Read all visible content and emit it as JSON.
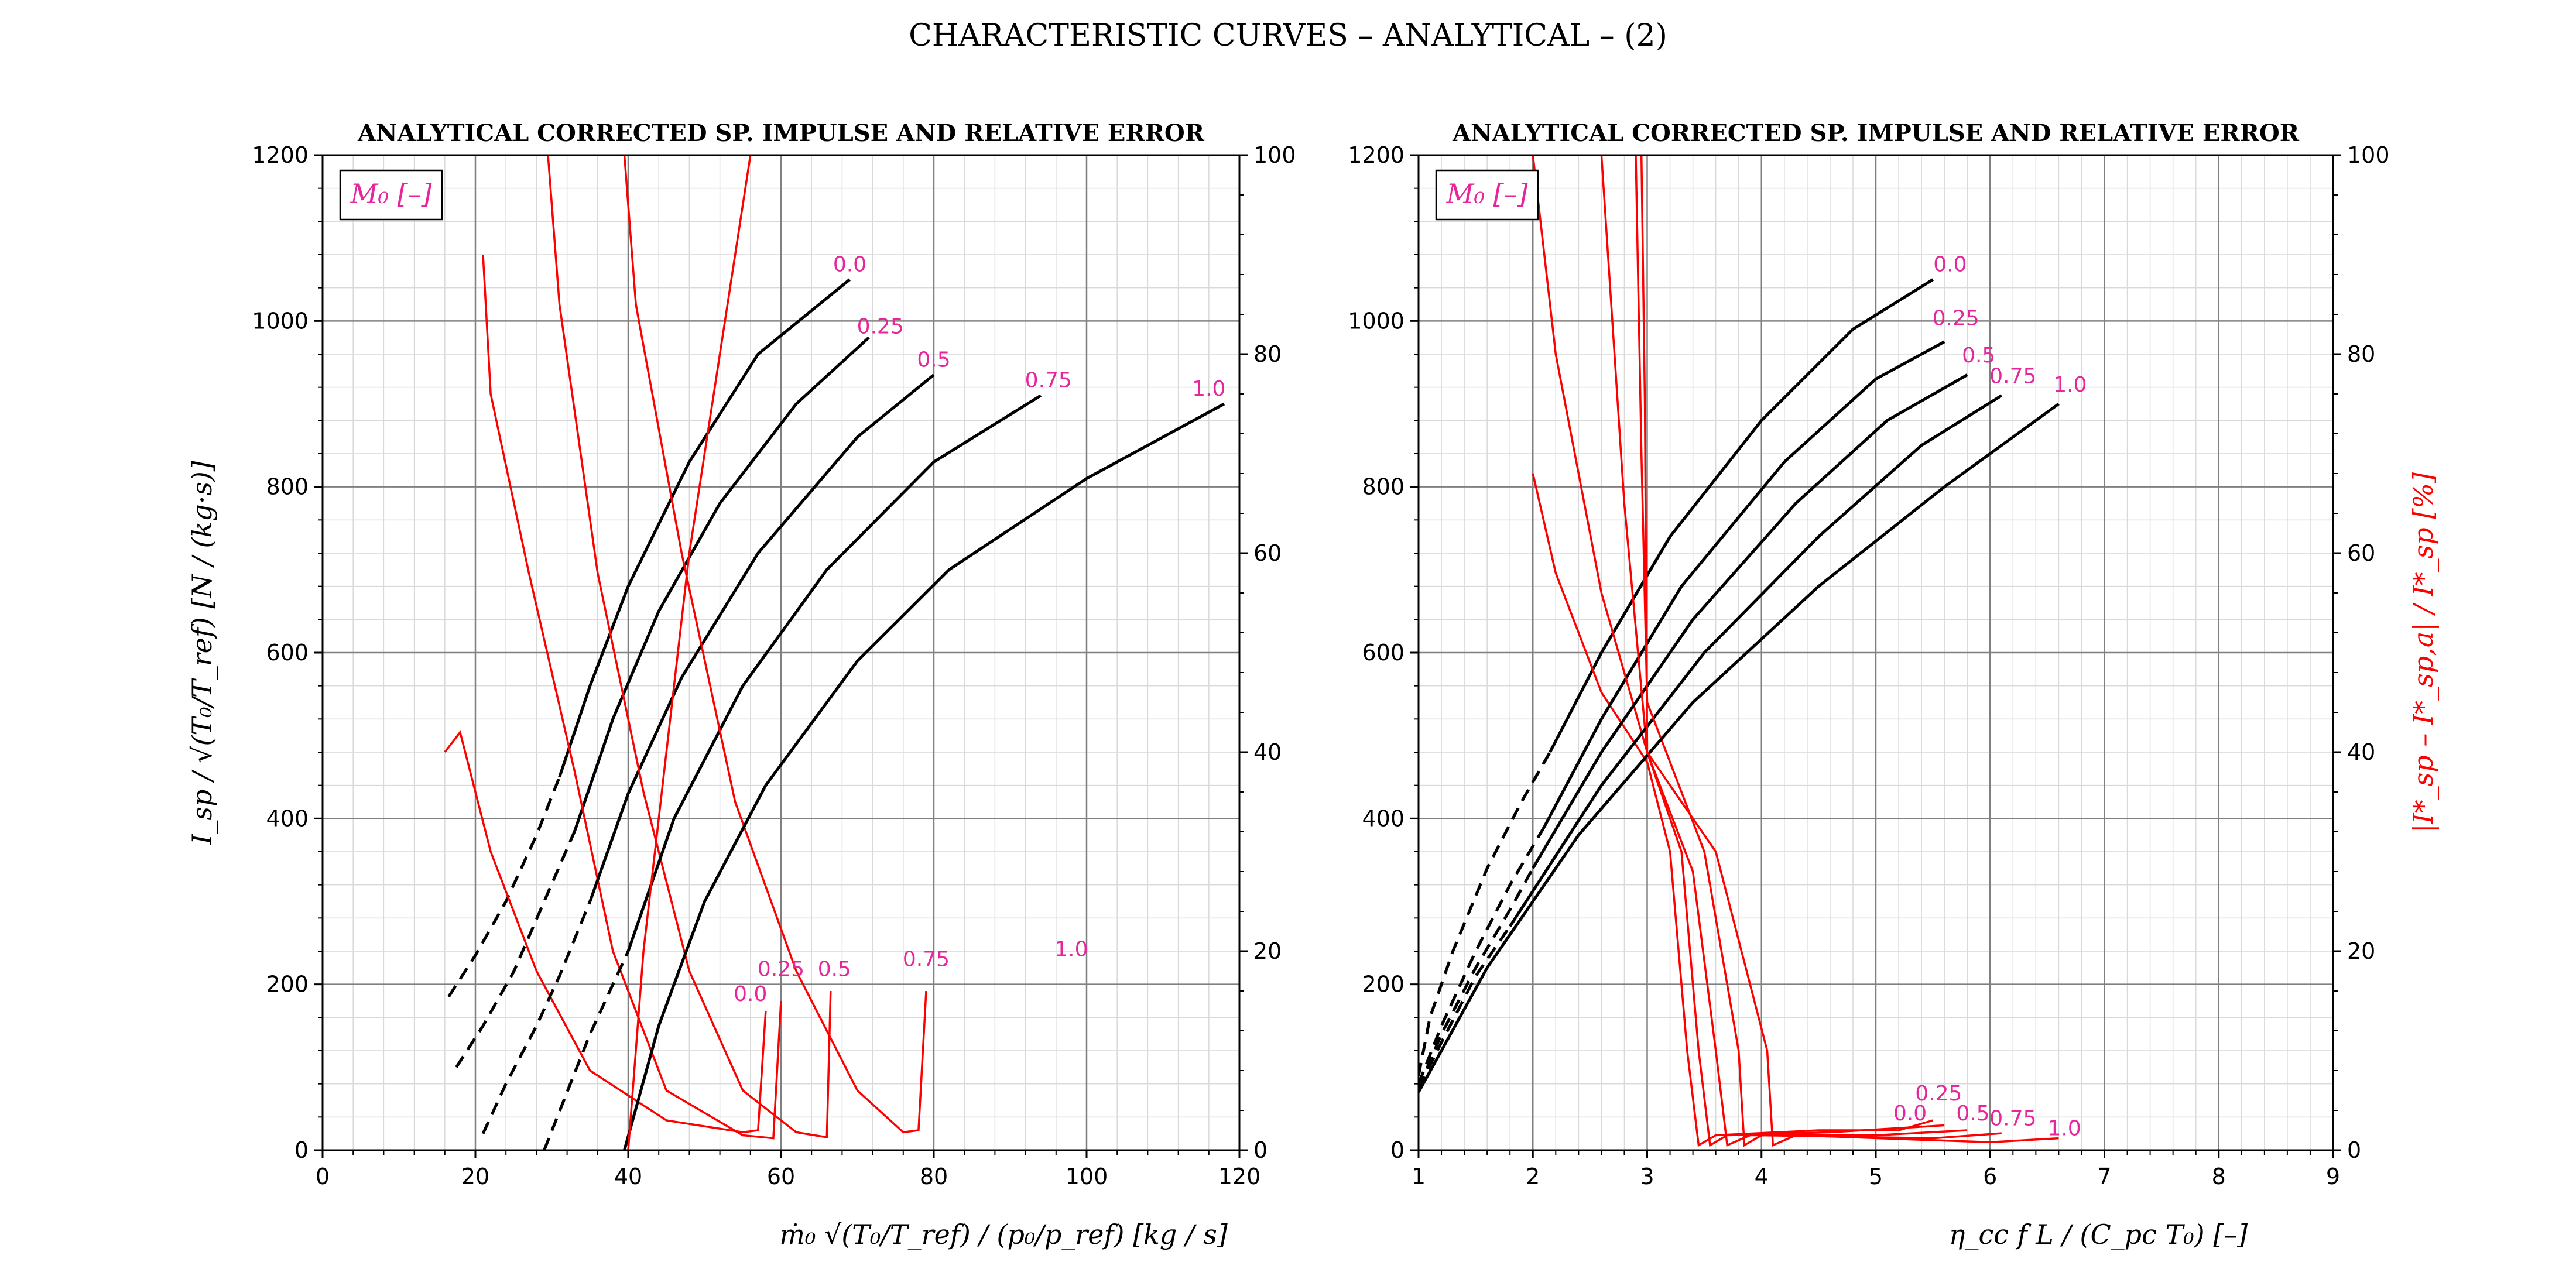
{
  "figure": {
    "title": "CHARACTERISTIC CURVES – ANALYTICAL – (2)"
  },
  "colors": {
    "main": "#000000",
    "error": "#ff0000",
    "label": "#e6269a",
    "grid_major": "#808080",
    "grid_minor": "#d9d9d9"
  },
  "legend_label": "M₀ [–]",
  "ylabel_left": "I_sp / √(T₀/T_ref)  [N / (kg·s)]",
  "ylabel_right": "|I*_sp – I*_sp,a| / I*_sp  [%]",
  "chart_data": [
    {
      "type": "line",
      "title": "ANALYTICAL CORRECTED SP. IMPULSE AND RELATIVE ERROR",
      "xlabel": "ṁ₀ √(T₀/T_ref) / (p₀/p_ref)  [kg / s]",
      "ylabel": "I_sp / √(T₀/T_ref)  [N / (kg·s)]",
      "ylabel_right": "",
      "xlim": [
        0,
        120
      ],
      "ylim": [
        0,
        1200
      ],
      "y2lim": [
        0,
        100
      ],
      "xticks": [
        "0",
        "20",
        "40",
        "60",
        "80",
        "100",
        "120"
      ],
      "yticks": [
        "0",
        "200",
        "400",
        "600",
        "800",
        "1000",
        "1200"
      ],
      "y2ticks": [
        "0",
        "20",
        "40",
        "60",
        "80",
        "100"
      ],
      "grid": true,
      "legend_position": "top-left",
      "series": [
        {
          "name": "0.0",
          "dashed": [
            [
              16.5,
              185
            ],
            [
              20,
              235
            ],
            [
              24,
              300
            ],
            [
              28,
              380
            ],
            [
              31,
              450
            ]
          ],
          "solid": [
            [
              31,
              450
            ],
            [
              35,
              560
            ],
            [
              40,
              680
            ],
            [
              48,
              830
            ],
            [
              57,
              960
            ],
            [
              69,
              1050
            ]
          ],
          "err": [
            [
              16,
              40
            ],
            [
              18,
              42
            ],
            [
              22,
              30
            ],
            [
              28,
              18
            ],
            [
              35,
              8
            ],
            [
              45,
              3
            ],
            [
              55,
              1.8
            ],
            [
              57,
              2
            ],
            [
              58,
              14
            ]
          ]
        },
        {
          "name": "0.25",
          "dashed": [
            [
              17.5,
              100
            ],
            [
              21,
              150
            ],
            [
              25,
              215
            ],
            [
              29,
              300
            ],
            [
              33,
              385
            ]
          ],
          "solid": [
            [
              33,
              385
            ],
            [
              38,
              520
            ],
            [
              44,
              650
            ],
            [
              52,
              780
            ],
            [
              62,
              900
            ],
            [
              71.5,
              980
            ]
          ],
          "err": [
            [
              21,
              90
            ],
            [
              22,
              76
            ],
            [
              27,
              58
            ],
            [
              33,
              38
            ],
            [
              38,
              20
            ],
            [
              45,
              6
            ],
            [
              55,
              1.5
            ],
            [
              59,
              1.2
            ],
            [
              60,
              15
            ]
          ]
        },
        {
          "name": "0.5",
          "dashed": [
            [
              21,
              20
            ],
            [
              24,
              80
            ],
            [
              28,
              150
            ],
            [
              31,
              210
            ],
            [
              35,
              300
            ]
          ],
          "solid": [
            [
              35,
              300
            ],
            [
              40,
              430
            ],
            [
              47,
              570
            ],
            [
              57,
              720
            ],
            [
              70,
              860
            ],
            [
              80,
              935
            ]
          ],
          "err": [
            [
              29.5,
              100
            ],
            [
              31,
              85
            ],
            [
              36,
              58
            ],
            [
              42,
              36
            ],
            [
              48,
              18
            ],
            [
              55,
              6
            ],
            [
              62,
              1.8
            ],
            [
              66,
              1.3
            ],
            [
              66.5,
              16
            ]
          ]
        },
        {
          "name": "0.75",
          "dashed": [
            [
              29,
              0
            ],
            [
              32,
              70
            ],
            [
              35,
              140
            ],
            [
              38,
              200
            ],
            [
              40,
              240
            ]
          ],
          "solid": [
            [
              40,
              240
            ],
            [
              46,
              400
            ],
            [
              55,
              560
            ],
            [
              66,
              700
            ],
            [
              80,
              830
            ],
            [
              94,
              910
            ]
          ],
          "err": [
            [
              39.5,
              100
            ],
            [
              41,
              85
            ],
            [
              47,
              60
            ],
            [
              54,
              35
            ],
            [
              62,
              18
            ],
            [
              70,
              6
            ],
            [
              76,
              1.8
            ],
            [
              78,
              2
            ],
            [
              79,
              16
            ]
          ]
        },
        {
          "name": "1.0",
          "dashed": [],
          "solid": [
            [
              39.5,
              0
            ],
            [
              44,
              150
            ],
            [
              50,
              300
            ],
            [
              58,
              440
            ],
            [
              70,
              590
            ],
            [
              82,
              700
            ],
            [
              100,
              810
            ],
            [
              118,
              900
            ]
          ],
          "err": [
            [
              40,
              0
            ],
            [
              42,
              20
            ],
            [
              48,
              60
            ],
            [
              56,
              100
            ],
            [
              66,
              140
            ],
            [
              80,
              200
            ],
            [
              98,
              400
            ]
          ]
        }
      ],
      "labels": [
        {
          "text": "0.0",
          "x": 69,
          "y": 1060,
          "axis": "main"
        },
        {
          "text": "0.25",
          "x": 73,
          "y": 985,
          "axis": "main"
        },
        {
          "text": "0.5",
          "x": 80,
          "y": 945,
          "axis": "main"
        },
        {
          "text": "0.75",
          "x": 95,
          "y": 920,
          "axis": "main"
        },
        {
          "text": "1.0",
          "x": 116,
          "y": 910,
          "axis": "main"
        },
        {
          "text": "0.0",
          "x": 56,
          "y": 15,
          "axis": "err"
        },
        {
          "text": "0.25",
          "x": 60,
          "y": 17.5,
          "axis": "err"
        },
        {
          "text": "0.5",
          "x": 67,
          "y": 17.5,
          "axis": "err"
        },
        {
          "text": "0.75",
          "x": 79,
          "y": 18.5,
          "axis": "err"
        },
        {
          "text": "1.0",
          "x": 98,
          "y": 19.5,
          "axis": "err"
        }
      ]
    },
    {
      "type": "line",
      "title": "ANALYTICAL CORRECTED SP. IMPULSE AND RELATIVE ERROR",
      "xlabel": "η_cc f L / (C_pc T₀)  [–]",
      "ylabel": "",
      "ylabel_right": "|I*_sp – I*_sp,a| / I*_sp  [%]",
      "xlim": [
        1,
        9
      ],
      "ylim": [
        0,
        1200
      ],
      "y2lim": [
        0,
        100
      ],
      "xticks": [
        "1",
        "2",
        "3",
        "4",
        "5",
        "6",
        "7",
        "8",
        "9"
      ],
      "yticks": [
        "0",
        "200",
        "400",
        "600",
        "800",
        "1000",
        "1200"
      ],
      "y2ticks": [
        "0",
        "20",
        "40",
        "60",
        "80",
        "100"
      ],
      "grid": true,
      "legend_position": "top-left",
      "series": [
        {
          "name": "0.0",
          "dashed": [
            [
              1.0,
              90
            ],
            [
              1.1,
              160
            ],
            [
              1.3,
              240
            ],
            [
              1.6,
              340
            ],
            [
              1.9,
              420
            ],
            [
              2.15,
              480
            ]
          ],
          "solid": [
            [
              2.15,
              480
            ],
            [
              2.6,
              600
            ],
            [
              3.2,
              740
            ],
            [
              4.0,
              880
            ],
            [
              4.8,
              990
            ],
            [
              5.5,
              1050
            ]
          ],
          "err": [
            [
              2.0,
              68
            ],
            [
              2.2,
              58
            ],
            [
              2.6,
              46
            ],
            [
              3.0,
              39
            ],
            [
              3.2,
              30
            ],
            [
              3.35,
              10
            ],
            [
              3.45,
              0.5
            ],
            [
              3.6,
              1.5
            ],
            [
              4.5,
              2
            ],
            [
              5.2,
              2
            ],
            [
              5.5,
              3
            ]
          ]
        },
        {
          "name": "0.25",
          "dashed": [
            [
              1.0,
              80
            ],
            [
              1.2,
              150
            ],
            [
              1.5,
              240
            ],
            [
              1.8,
              320
            ],
            [
              2.1,
              390
            ]
          ],
          "solid": [
            [
              2.1,
              390
            ],
            [
              2.6,
              520
            ],
            [
              3.3,
              680
            ],
            [
              4.2,
              830
            ],
            [
              5.0,
              930
            ],
            [
              5.6,
              975
            ]
          ],
          "err": [
            [
              2.0,
              100
            ],
            [
              2.2,
              80
            ],
            [
              2.6,
              56
            ],
            [
              3.0,
              40
            ],
            [
              3.3,
              30
            ],
            [
              3.45,
              10
            ],
            [
              3.55,
              0.5
            ],
            [
              3.7,
              1.5
            ],
            [
              4.6,
              1.8
            ],
            [
              5.6,
              2.5
            ]
          ]
        },
        {
          "name": "0.5",
          "dashed": [
            [
              1.0,
              75
            ],
            [
              1.2,
              140
            ],
            [
              1.5,
              220
            ],
            [
              1.8,
              290
            ],
            [
              2.0,
              340
            ]
          ],
          "solid": [
            [
              2.0,
              340
            ],
            [
              2.6,
              480
            ],
            [
              3.4,
              640
            ],
            [
              4.3,
              780
            ],
            [
              5.1,
              880
            ],
            [
              5.8,
              935
            ]
          ],
          "err": [
            [
              2.6,
              100
            ],
            [
              2.8,
              65
            ],
            [
              3.0,
              40
            ],
            [
              3.4,
              28
            ],
            [
              3.6,
              10
            ],
            [
              3.7,
              0.5
            ],
            [
              3.9,
              1.5
            ],
            [
              5.0,
              1.5
            ],
            [
              5.8,
              2
            ]
          ]
        },
        {
          "name": "0.75",
          "dashed": [
            [
              1.0,
              75
            ],
            [
              1.2,
              130
            ],
            [
              1.5,
              210
            ],
            [
              1.8,
              270
            ]
          ],
          "solid": [
            [
              1.8,
              270
            ],
            [
              2.6,
              440
            ],
            [
              3.5,
              600
            ],
            [
              4.5,
              740
            ],
            [
              5.4,
              850
            ],
            [
              6.1,
              910
            ]
          ],
          "err": [
            [
              2.9,
              100
            ],
            [
              2.95,
              70
            ],
            [
              3.0,
              45
            ],
            [
              3.5,
              30
            ],
            [
              3.8,
              10
            ],
            [
              3.85,
              0.5
            ],
            [
              4.0,
              1.5
            ],
            [
              5.5,
              1.2
            ],
            [
              6.1,
              1.7
            ]
          ]
        },
        {
          "name": "1.0",
          "dashed": [],
          "solid": [
            [
              1.0,
              70
            ],
            [
              1.6,
              220
            ],
            [
              2.4,
              380
            ],
            [
              3.4,
              540
            ],
            [
              4.5,
              680
            ],
            [
              5.6,
              800
            ],
            [
              6.6,
              900
            ]
          ],
          "err": [
            [
              2.95,
              100
            ],
            [
              2.98,
              75
            ],
            [
              3.0,
              40
            ],
            [
              3.6,
              30
            ],
            [
              4.05,
              10
            ],
            [
              4.1,
              0.5
            ],
            [
              4.3,
              1.5
            ],
            [
              6.0,
              0.8
            ],
            [
              6.6,
              1.2
            ]
          ]
        }
      ],
      "labels": [
        {
          "text": "0.0",
          "x": 5.65,
          "y": 1060,
          "axis": "main"
        },
        {
          "text": "0.25",
          "x": 5.7,
          "y": 995,
          "axis": "main"
        },
        {
          "text": "0.5",
          "x": 5.9,
          "y": 950,
          "axis": "main"
        },
        {
          "text": "0.75",
          "x": 6.2,
          "y": 925,
          "axis": "main"
        },
        {
          "text": "1.0",
          "x": 6.7,
          "y": 915,
          "axis": "main"
        },
        {
          "text": "0.25",
          "x": 5.55,
          "y": 5,
          "axis": "err"
        },
        {
          "text": "0.0",
          "x": 5.3,
          "y": 3,
          "axis": "err"
        },
        {
          "text": "0.5",
          "x": 5.85,
          "y": 3,
          "axis": "err"
        },
        {
          "text": "0.75",
          "x": 6.2,
          "y": 2.5,
          "axis": "err"
        },
        {
          "text": "1.0",
          "x": 6.65,
          "y": 1.5,
          "axis": "err"
        }
      ]
    }
  ]
}
